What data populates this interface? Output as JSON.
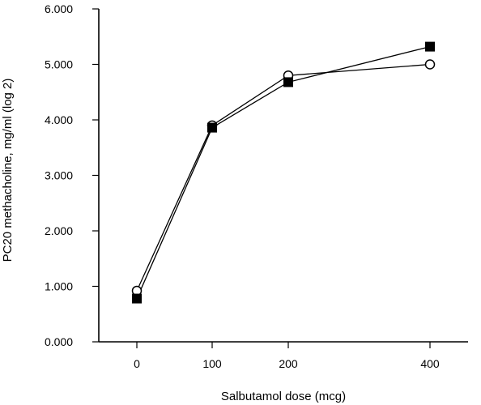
{
  "chart_data": {
    "type": "line",
    "title": "",
    "xlabel": "Salbutamol dose (mcg)",
    "ylabel": "PC20 methacholine, mg/ml (log 2)",
    "categories": [
      "0",
      "100",
      "200",
      "400"
    ],
    "y_ticks": [
      "0.000",
      "1.000",
      "2.000",
      "3.000",
      "4.000",
      "5.000",
      "6.000"
    ],
    "ylim": [
      0,
      6
    ],
    "grid": false,
    "legend": "none",
    "series": [
      {
        "marker": "open-circle",
        "color": "#000000",
        "values": [
          0.92,
          3.9,
          4.8,
          5.0
        ]
      },
      {
        "marker": "filled-square",
        "color": "#000000",
        "values": [
          0.78,
          3.86,
          4.68,
          5.32
        ]
      }
    ]
  }
}
